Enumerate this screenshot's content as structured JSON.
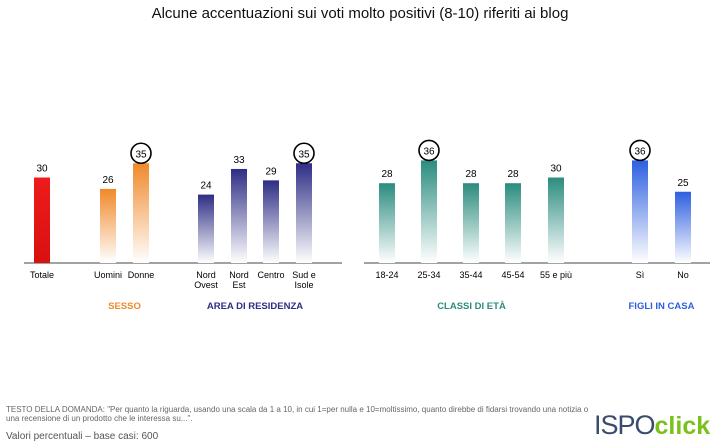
{
  "title": "Alcune accentuazioni sui voti molto positivi (8-10) riferiti ai blog",
  "question": "TESTO DELLA DOMANDA: \"Per quanto la riguarda, usando una scala da 1 a 10, in cui 1=per nulla e 10=moltissimo, quanto direbbe di fidarsi trovando una notizia o una recensione di un prodotto che le interessa su...\".",
  "footer": "Valori percentuali – base casi: 600",
  "logo": {
    "part1": "ISPO",
    "part2": "click"
  },
  "colors": {
    "totale": "#ee1c1c",
    "sesso": "#f0892a",
    "area": "#2e2d85",
    "eta": "#2b8c7f",
    "figli": "#2e5fe0"
  },
  "chart_data": {
    "type": "bar",
    "title": "Alcune accentuazioni sui voti molto positivi (8-10) riferiti ai blog",
    "ylim": [
      0,
      60
    ],
    "unit": "%",
    "groups": [
      {
        "name": "",
        "color": "#ee1c1c",
        "bars": [
          {
            "label": "Totale",
            "value": 30,
            "circled": false
          }
        ]
      },
      {
        "name": "SESSO",
        "color": "#f0892a",
        "bars": [
          {
            "label": "Uomini",
            "value": 26,
            "circled": false
          },
          {
            "label": "Donne",
            "value": 35,
            "circled": true
          }
        ]
      },
      {
        "name": "AREA DI RESIDENZA",
        "color": "#2e2d85",
        "bars": [
          {
            "label": "Nord\nOvest",
            "value": 24,
            "circled": false
          },
          {
            "label": "Nord\nEst",
            "value": 33,
            "circled": false
          },
          {
            "label": "Centro",
            "value": 29,
            "circled": false
          },
          {
            "label": "Sud e\nIsole",
            "value": 35,
            "circled": true
          }
        ]
      },
      {
        "name": "CLASSI DI ETÀ",
        "color": "#2b8c7f",
        "bars": [
          {
            "label": "18-24",
            "value": 28,
            "circled": false
          },
          {
            "label": "25-34",
            "value": 36,
            "circled": true
          },
          {
            "label": "35-44",
            "value": 28,
            "circled": false
          },
          {
            "label": "45-54",
            "value": 28,
            "circled": false
          },
          {
            "label": "55 e più",
            "value": 30,
            "circled": false
          }
        ]
      },
      {
        "name": "FIGLI IN CASA",
        "color": "#2e5fe0",
        "bars": [
          {
            "label": "Sì",
            "value": 36,
            "circled": true
          },
          {
            "label": "No",
            "value": 25,
            "circled": false
          }
        ]
      }
    ]
  }
}
